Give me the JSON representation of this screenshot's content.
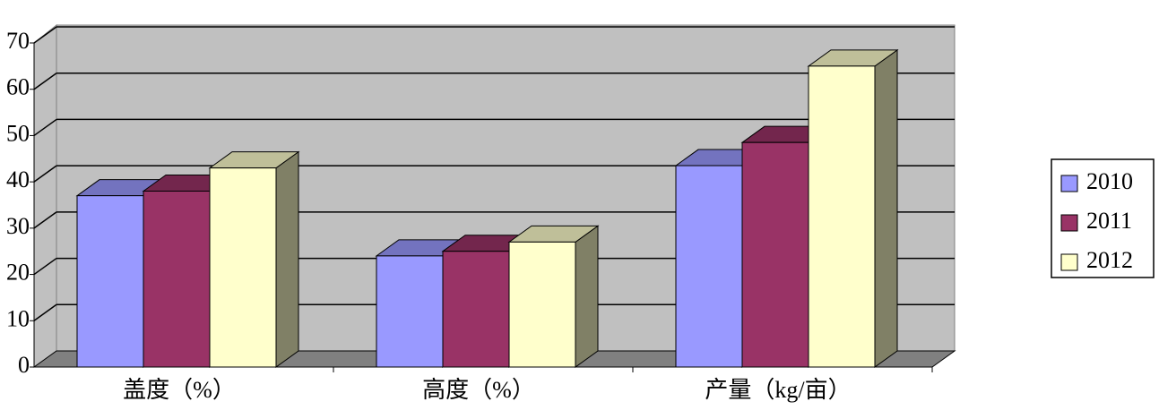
{
  "chart_data": {
    "type": "bar3d",
    "categories": [
      "盖度（%）",
      "高度（%）",
      "产量（kg/亩）"
    ],
    "series": [
      {
        "name": "2010",
        "color": "#9999ff",
        "values": [
          37,
          24,
          43.5
        ]
      },
      {
        "name": "2011",
        "color": "#993366",
        "values": [
          38,
          25,
          48.5
        ]
      },
      {
        "name": "2012",
        "color": "#ffffcc",
        "values": [
          43,
          27,
          65
        ]
      }
    ],
    "ylim": [
      0,
      70
    ],
    "yticks": [
      0,
      10,
      20,
      30,
      40,
      50,
      60,
      70
    ],
    "grid": true,
    "legend": "right"
  }
}
